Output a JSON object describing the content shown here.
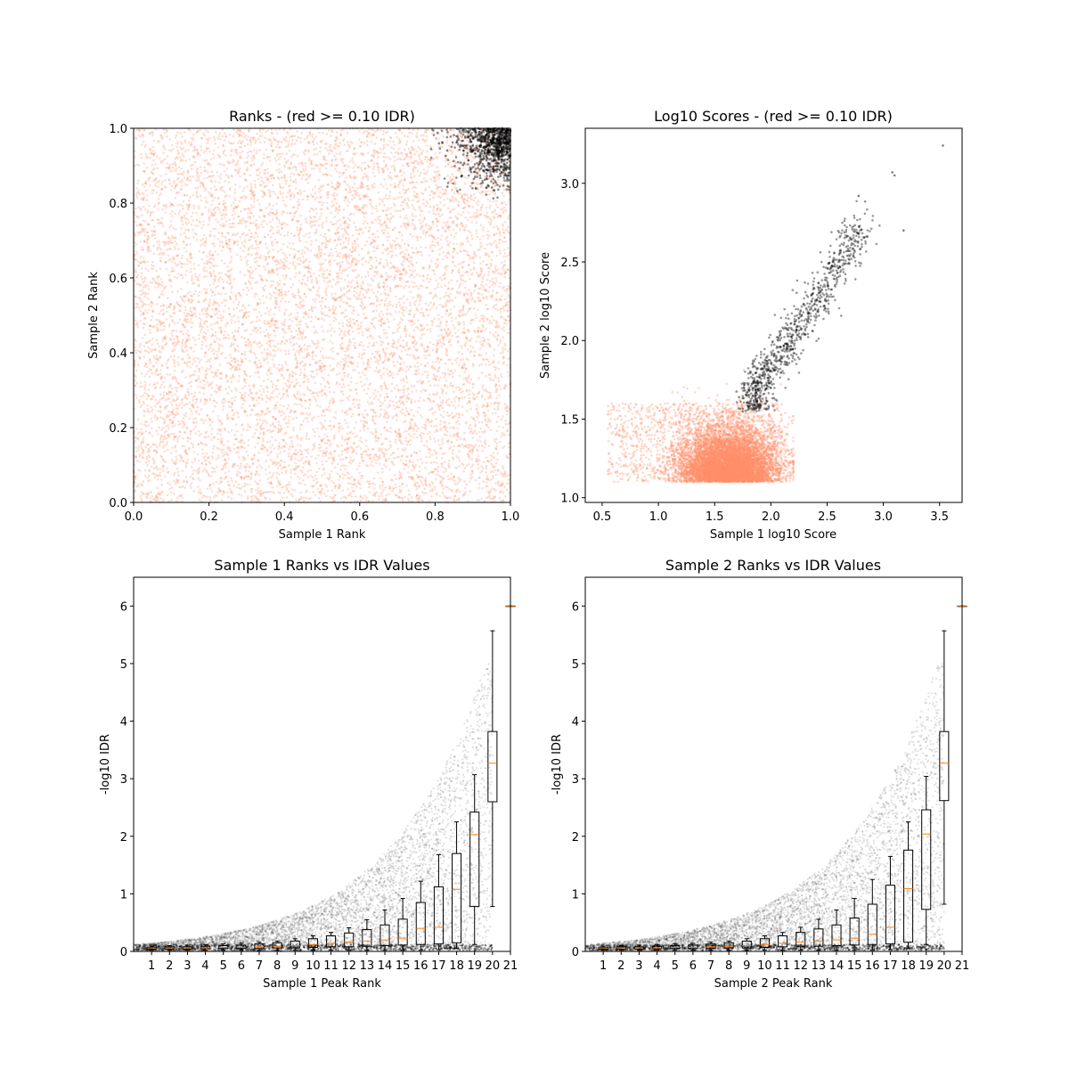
{
  "colors": {
    "low_idr": "#ff8f6b",
    "high_idr": "#000000",
    "median": "#ff7f0e",
    "box": "#000000"
  },
  "chart_data": [
    {
      "type": "scatter",
      "title": "Ranks - (red >= 0.10 IDR)",
      "xlabel": "Sample 1 Rank",
      "ylabel": "Sample 2 Rank",
      "xlim": [
        0,
        1
      ],
      "ylim": [
        0,
        1
      ],
      "xticks": [
        "0.0",
        "0.2",
        "0.4",
        "0.6",
        "0.8",
        "1.0"
      ],
      "yticks": [
        "0.0",
        "0.2",
        "0.4",
        "0.6",
        "0.8",
        "1.0"
      ],
      "grid": false,
      "series": [
        {
          "color": "#ff8f6b",
          "distribution": "uniform over [0,1] x [0,1]",
          "approx_points": 9000
        },
        {
          "color": "#000000",
          "distribution": "cluster near (1,1), x from 0.77 to 1.0, y from 0.77 to 1.0",
          "approx_points": 900
        }
      ]
    },
    {
      "type": "scatter",
      "title": "Log10 Scores - (red >= 0.10 IDR)",
      "xlabel": "Sample 1 log10 Score",
      "ylabel": "Sample 2 log10 Score",
      "xlim": [
        0.35,
        3.7
      ],
      "ylim": [
        0.97,
        3.35
      ],
      "xticks": [
        "0.5",
        "1.0",
        "1.5",
        "2.0",
        "2.5",
        "3.0",
        "3.5"
      ],
      "yticks": [
        "1.0",
        "1.5",
        "2.0",
        "2.5",
        "3.0"
      ],
      "grid": false,
      "series": [
        {
          "color": "#ff8f6b",
          "distribution": "dense blob centred near (1.6, 1.25), x 0.5 to 2.2, y 1.1 to 1.95",
          "approx_points": 9000
        },
        {
          "color": "#000000",
          "distribution": "band from (1.8, 1.6) to (2.9, 2.8)",
          "approx_points": 900
        },
        {
          "color": "#000000",
          "outliers": [
            [
              3.53,
              3.24
            ],
            [
              3.1,
              3.05
            ],
            [
              3.08,
              3.07
            ],
            [
              2.78,
              2.92
            ],
            [
              3.18,
              2.7
            ]
          ]
        }
      ]
    },
    {
      "type": "box",
      "title": "Sample 1 Ranks vs IDR Values",
      "xlabel": "Sample 1 Peak Rank",
      "ylabel": "-log10 IDR",
      "xlim": [
        0,
        21
      ],
      "ylim": [
        0,
        6.5
      ],
      "categories": [
        "1",
        "2",
        "3",
        "4",
        "5",
        "6",
        "7",
        "8",
        "9",
        "10",
        "11",
        "12",
        "13",
        "14",
        "15",
        "16",
        "17",
        "18",
        "19",
        "20",
        "21"
      ],
      "yticks": [
        "0",
        "1",
        "2",
        "3",
        "4",
        "5",
        "6"
      ],
      "boxes": [
        {
          "q1": 0.04,
          "median": 0.06,
          "q3": 0.07,
          "whislo": 0.02,
          "whishi": 0.09
        },
        {
          "q1": 0.04,
          "median": 0.06,
          "q3": 0.08,
          "whislo": 0.02,
          "whishi": 0.1
        },
        {
          "q1": 0.04,
          "median": 0.06,
          "q3": 0.08,
          "whislo": 0.02,
          "whishi": 0.11
        },
        {
          "q1": 0.05,
          "median": 0.06,
          "q3": 0.09,
          "whislo": 0.02,
          "whishi": 0.12
        },
        {
          "q1": 0.05,
          "median": 0.07,
          "q3": 0.1,
          "whislo": 0.02,
          "whishi": 0.13
        },
        {
          "q1": 0.05,
          "median": 0.07,
          "q3": 0.11,
          "whislo": 0.02,
          "whishi": 0.14
        },
        {
          "q1": 0.05,
          "median": 0.08,
          "q3": 0.13,
          "whislo": 0.02,
          "whishi": 0.16
        },
        {
          "q1": 0.06,
          "median": 0.09,
          "q3": 0.15,
          "whislo": 0.02,
          "whishi": 0.18
        },
        {
          "q1": 0.06,
          "median": 0.1,
          "q3": 0.18,
          "whislo": 0.02,
          "whishi": 0.22
        },
        {
          "q1": 0.07,
          "median": 0.12,
          "q3": 0.22,
          "whislo": 0.02,
          "whishi": 0.27
        },
        {
          "q1": 0.08,
          "median": 0.14,
          "q3": 0.27,
          "whislo": 0.02,
          "whishi": 0.33
        },
        {
          "q1": 0.08,
          "median": 0.16,
          "q3": 0.32,
          "whislo": 0.02,
          "whishi": 0.41
        },
        {
          "q1": 0.09,
          "median": 0.18,
          "q3": 0.38,
          "whislo": 0.02,
          "whishi": 0.55
        },
        {
          "q1": 0.1,
          "median": 0.2,
          "q3": 0.46,
          "whislo": 0.02,
          "whishi": 0.72
        },
        {
          "q1": 0.11,
          "median": 0.23,
          "q3": 0.56,
          "whislo": 0.02,
          "whishi": 0.92
        },
        {
          "q1": 0.12,
          "median": 0.4,
          "q3": 0.85,
          "whislo": 0.02,
          "whishi": 1.22
        },
        {
          "q1": 0.13,
          "median": 0.42,
          "q3": 1.12,
          "whislo": 0.03,
          "whishi": 1.68
        },
        {
          "q1": 0.15,
          "median": 1.08,
          "q3": 1.7,
          "whislo": 0.05,
          "whishi": 2.25
        },
        {
          "q1": 0.78,
          "median": 2.03,
          "q3": 2.42,
          "whislo": 0.12,
          "whishi": 3.07
        },
        {
          "q1": 2.6,
          "median": 3.27,
          "q3": 3.82,
          "whislo": 0.78,
          "whishi": 5.57
        },
        {
          "q1": 6.0,
          "median": 6.0,
          "q3": 6.0,
          "whislo": 6.0,
          "whishi": 6.0
        }
      ]
    },
    {
      "type": "box",
      "title": "Sample 2 Ranks vs IDR Values",
      "xlabel": "Sample 2 Peak Rank",
      "ylabel": "-log10 IDR",
      "xlim": [
        0,
        21
      ],
      "ylim": [
        0,
        6.5
      ],
      "categories": [
        "1",
        "2",
        "3",
        "4",
        "5",
        "6",
        "7",
        "8",
        "9",
        "10",
        "11",
        "12",
        "13",
        "14",
        "15",
        "16",
        "17",
        "18",
        "19",
        "20",
        "21"
      ],
      "yticks": [
        "0",
        "1",
        "2",
        "3",
        "4",
        "5",
        "6"
      ],
      "boxes": [
        {
          "q1": 0.04,
          "median": 0.06,
          "q3": 0.07,
          "whislo": 0.02,
          "whishi": 0.09
        },
        {
          "q1": 0.04,
          "median": 0.06,
          "q3": 0.08,
          "whislo": 0.02,
          "whishi": 0.1
        },
        {
          "q1": 0.04,
          "median": 0.06,
          "q3": 0.08,
          "whislo": 0.02,
          "whishi": 0.11
        },
        {
          "q1": 0.05,
          "median": 0.06,
          "q3": 0.09,
          "whislo": 0.02,
          "whishi": 0.12
        },
        {
          "q1": 0.05,
          "median": 0.07,
          "q3": 0.1,
          "whislo": 0.02,
          "whishi": 0.13
        },
        {
          "q1": 0.05,
          "median": 0.07,
          "q3": 0.11,
          "whislo": 0.02,
          "whishi": 0.14
        },
        {
          "q1": 0.05,
          "median": 0.08,
          "q3": 0.13,
          "whislo": 0.02,
          "whishi": 0.16
        },
        {
          "q1": 0.06,
          "median": 0.09,
          "q3": 0.15,
          "whislo": 0.02,
          "whishi": 0.18
        },
        {
          "q1": 0.06,
          "median": 0.1,
          "q3": 0.18,
          "whislo": 0.02,
          "whishi": 0.22
        },
        {
          "q1": 0.07,
          "median": 0.12,
          "q3": 0.22,
          "whislo": 0.02,
          "whishi": 0.27
        },
        {
          "q1": 0.08,
          "median": 0.14,
          "q3": 0.27,
          "whislo": 0.02,
          "whishi": 0.33
        },
        {
          "q1": 0.08,
          "median": 0.16,
          "q3": 0.33,
          "whislo": 0.02,
          "whishi": 0.42
        },
        {
          "q1": 0.09,
          "median": 0.18,
          "q3": 0.39,
          "whislo": 0.02,
          "whishi": 0.56
        },
        {
          "q1": 0.1,
          "median": 0.2,
          "q3": 0.46,
          "whislo": 0.02,
          "whishi": 0.72
        },
        {
          "q1": 0.11,
          "median": 0.23,
          "q3": 0.58,
          "whislo": 0.02,
          "whishi": 0.92
        },
        {
          "q1": 0.12,
          "median": 0.3,
          "q3": 0.82,
          "whislo": 0.02,
          "whishi": 1.25
        },
        {
          "q1": 0.13,
          "median": 0.42,
          "q3": 1.15,
          "whislo": 0.03,
          "whishi": 1.65
        },
        {
          "q1": 0.16,
          "median": 1.09,
          "q3": 1.76,
          "whislo": 0.05,
          "whishi": 2.25
        },
        {
          "q1": 0.73,
          "median": 2.04,
          "q3": 2.46,
          "whislo": 0.12,
          "whishi": 3.04
        },
        {
          "q1": 2.62,
          "median": 3.27,
          "q3": 3.82,
          "whislo": 0.82,
          "whishi": 5.57
        },
        {
          "q1": 6.0,
          "median": 6.0,
          "q3": 6.0,
          "whislo": 6.0,
          "whishi": 6.0
        }
      ]
    }
  ]
}
